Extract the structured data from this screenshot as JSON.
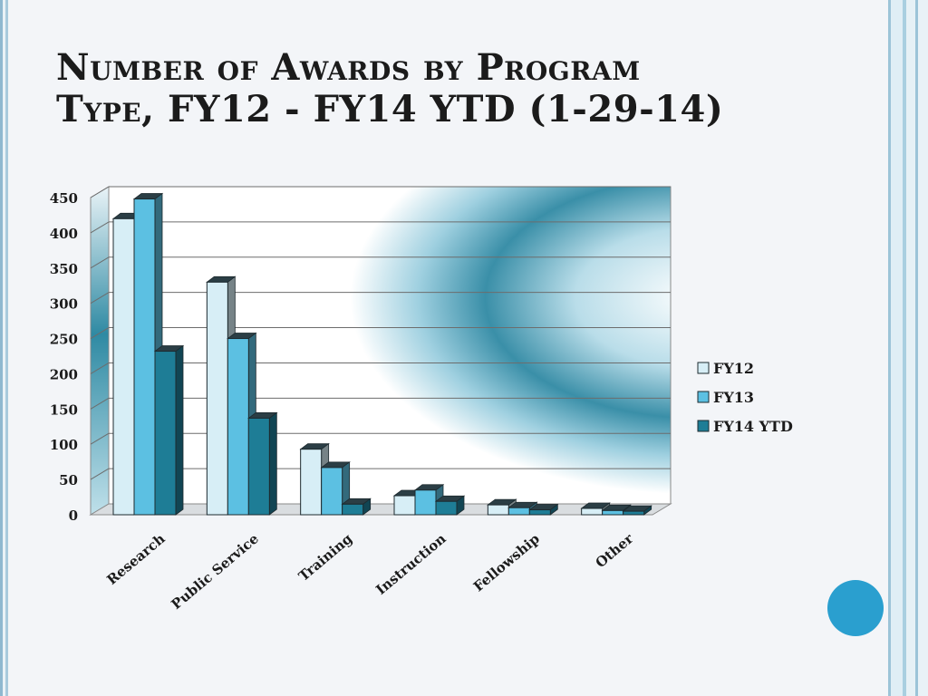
{
  "slide": {
    "title_line1": "Number of Awards by Program",
    "title_line2": "Type, FY12 - FY14 YTD (1-29-14)"
  },
  "colors": {
    "fy12": "#d7eef6",
    "fy13": "#5cc0e2",
    "fy14": "#1e7d96",
    "accent_circle": "#2a9fcf"
  },
  "chart_data": {
    "type": "bar",
    "title": "Number of Awards by Program Type, FY12 - FY14 YTD (1-29-14)",
    "categories": [
      "Research",
      "Public Service",
      "Training",
      "Instruction",
      "Fellowship",
      "Other"
    ],
    "series": [
      {
        "name": "FY12",
        "values": [
          420,
          330,
          93,
          27,
          14,
          9
        ]
      },
      {
        "name": "FY13",
        "values": [
          448,
          250,
          67,
          35,
          10,
          6
        ]
      },
      {
        "name": "FY14 YTD",
        "values": [
          232,
          137,
          15,
          19,
          7,
          5
        ]
      }
    ],
    "ylim": [
      0,
      450
    ],
    "yticks": [
      0,
      50,
      100,
      150,
      200,
      250,
      300,
      350,
      400,
      450
    ],
    "xlabel": "",
    "ylabel": "",
    "grid": true,
    "legend": "right"
  }
}
